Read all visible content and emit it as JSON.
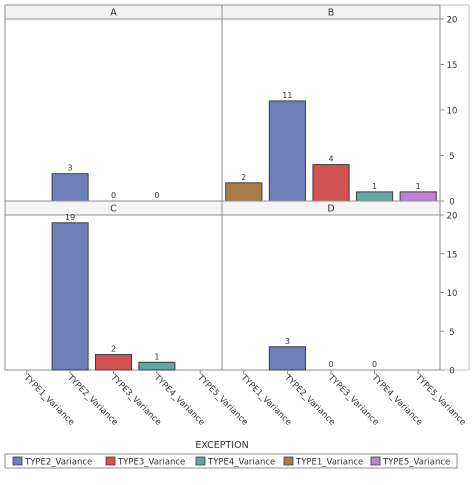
{
  "chart_data": {
    "type": "bar",
    "layout": "2x2 panel grid",
    "xlabel": "EXCEPTION",
    "categories": [
      "TYPE1_Variance",
      "TYPE2_Variance",
      "TYPE3_Variance",
      "TYPE4_Variance",
      "TYPE5_Variance"
    ],
    "ylim": [
      0,
      20
    ],
    "yticks": [
      0,
      5,
      10,
      15,
      20
    ],
    "grid": false,
    "legend_position": "bottom",
    "legend": [
      {
        "name": "TYPE2_Variance",
        "color": "#6e7fb9"
      },
      {
        "name": "TYPE3_Variance",
        "color": "#d05252"
      },
      {
        "name": "TYPE4_Variance",
        "color": "#5fa79f"
      },
      {
        "name": "TYPE1_Variance",
        "color": "#a87c4a"
      },
      {
        "name": "TYPE5_Variance",
        "color": "#bd82d6"
      }
    ],
    "colors": {
      "TYPE1_Variance": "#a87c4a",
      "TYPE2_Variance": "#6e7fb9",
      "TYPE3_Variance": "#d05252",
      "TYPE4_Variance": "#5fa79f",
      "TYPE5_Variance": "#bd82d6"
    },
    "panels": [
      {
        "label": "A",
        "values": [
          null,
          3,
          0,
          0,
          null
        ]
      },
      {
        "label": "B",
        "values": [
          2,
          11,
          4,
          1,
          1
        ]
      },
      {
        "label": "C",
        "values": [
          null,
          19,
          2,
          1,
          null
        ]
      },
      {
        "label": "D",
        "values": [
          null,
          3,
          0,
          0,
          null
        ]
      }
    ]
  }
}
